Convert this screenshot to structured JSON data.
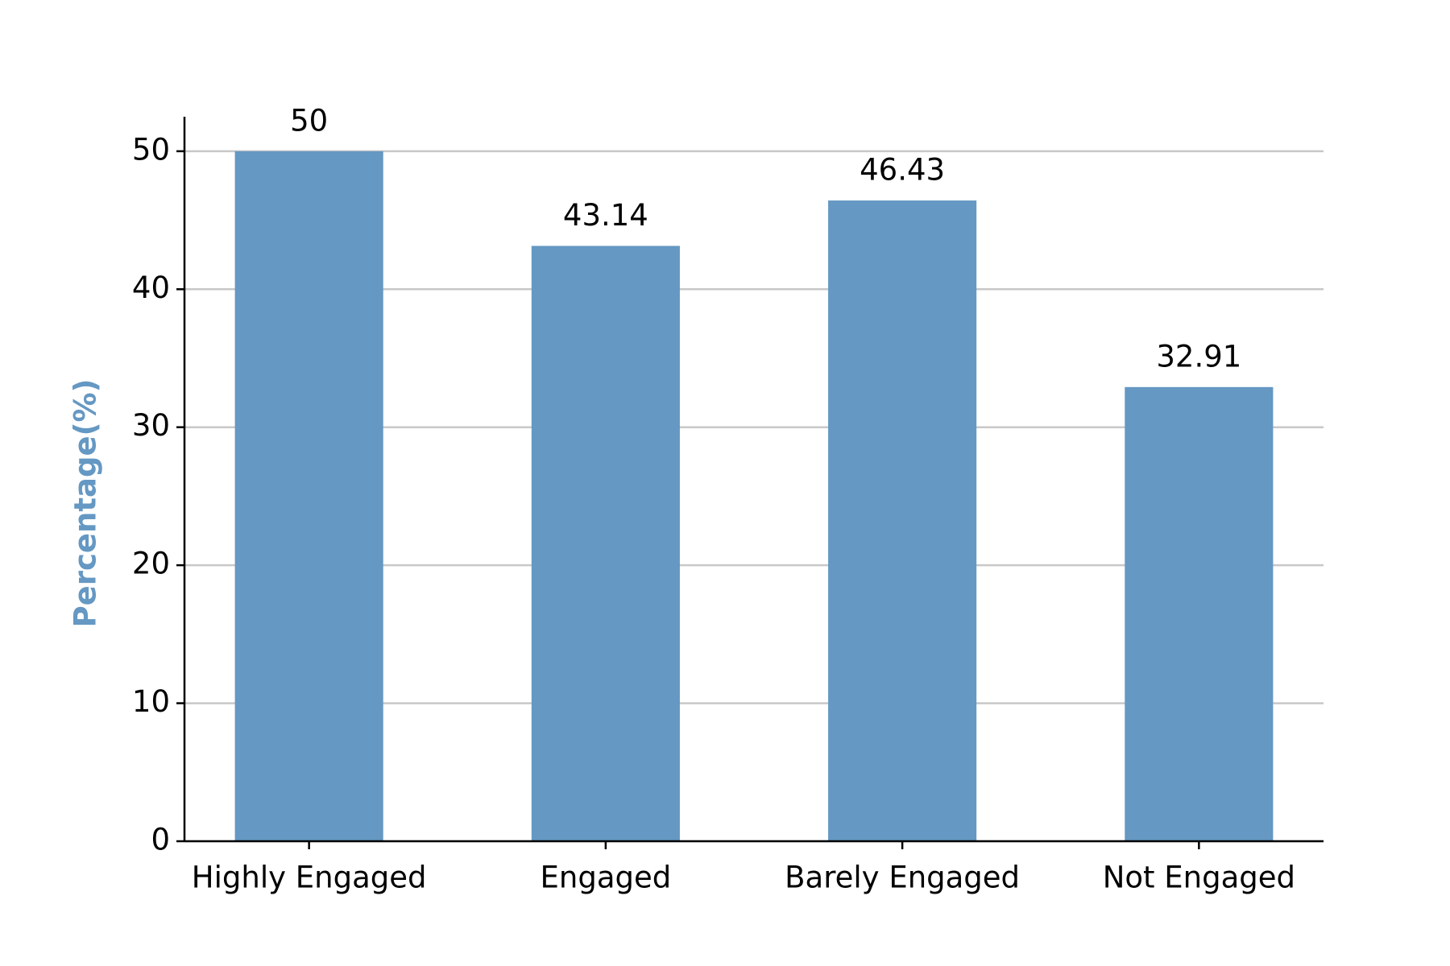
{
  "chart_data": {
    "type": "bar",
    "ylabel": "Percentage(%)",
    "categories": [
      "Highly Engaged",
      "Engaged",
      "Barely Engaged",
      "Not Engaged"
    ],
    "values": [
      50,
      43.14,
      46.43,
      32.91
    ],
    "color": "#6598c3",
    "ylim": [
      0,
      52.5
    ],
    "yticks": [
      0,
      10,
      20,
      30,
      40,
      50
    ],
    "grid": true
  }
}
